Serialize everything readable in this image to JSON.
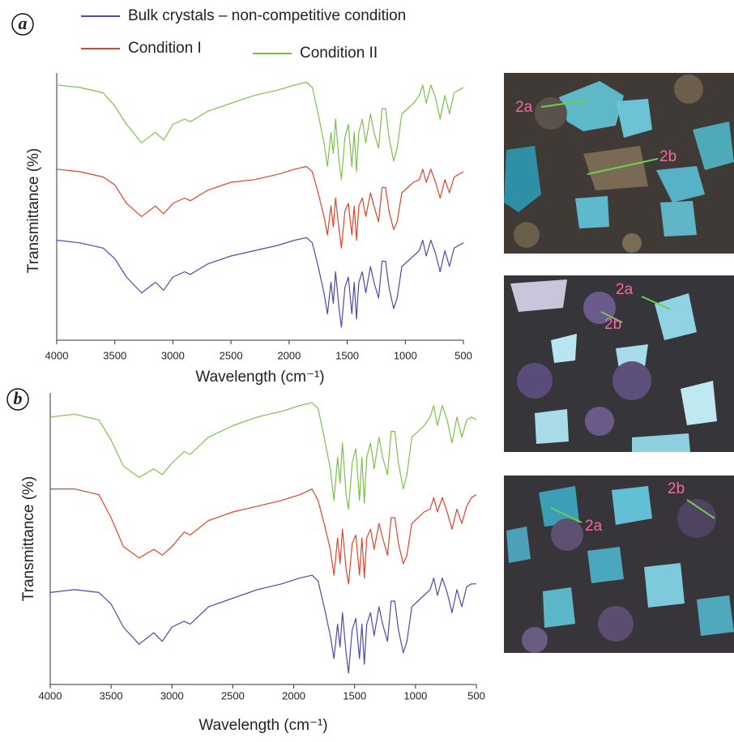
{
  "chart_data": [
    {
      "type": "line",
      "panel": "a",
      "xlabel": "Wavelength (cm⁻¹)",
      "ylabel": "Transmittance (%)",
      "legend": "top",
      "x": [
        4000,
        3800,
        3600,
        3500,
        3400,
        3270,
        3150,
        3080,
        3000,
        2900,
        2850,
        2700,
        2500,
        2300,
        2100,
        1950,
        1850,
        1800,
        1750,
        1700,
        1670,
        1640,
        1620,
        1600,
        1570,
        1550,
        1520,
        1490,
        1460,
        1440,
        1420,
        1400,
        1370,
        1340,
        1300,
        1270,
        1230,
        1200,
        1170,
        1140,
        1100,
        1070,
        1030,
        980,
        930,
        880,
        850,
        820,
        780,
        740,
        700,
        660,
        620,
        580,
        540,
        500
      ],
      "xlim": [
        4000,
        500
      ],
      "xticks": [
        4000,
        3500,
        3000,
        2500,
        2000,
        1500,
        1000,
        500
      ],
      "ylim": [
        0,
        100
      ],
      "series": [
        {
          "name": "Bulk crystals – non-competitive condition",
          "color": "#4b4ba8",
          "values": [
            38,
            37,
            35,
            31,
            24,
            18,
            22,
            19,
            24,
            26,
            25,
            29,
            32,
            34,
            36,
            38,
            39,
            37,
            28,
            18,
            10,
            22,
            14,
            26,
            12,
            5,
            20,
            24,
            10,
            22,
            8,
            22,
            26,
            18,
            28,
            22,
            16,
            30,
            30,
            20,
            12,
            16,
            28,
            30,
            32,
            34,
            38,
            32,
            38,
            33,
            26,
            34,
            28,
            35,
            36,
            37
          ]
        },
        {
          "name": "Condition I",
          "color": "#e0442c",
          "values": [
            65,
            64,
            62,
            59,
            52,
            47,
            51,
            48,
            52,
            54,
            53,
            57,
            60,
            61,
            63,
            65,
            66,
            64,
            56,
            47,
            40,
            51,
            43,
            54,
            42,
            35,
            49,
            52,
            40,
            51,
            38,
            51,
            54,
            47,
            56,
            51,
            45,
            58,
            58,
            49,
            42,
            45,
            56,
            58,
            60,
            61,
            65,
            60,
            65,
            60,
            54,
            61,
            56,
            62,
            63,
            64
          ]
        },
        {
          "name": "Condition II",
          "color": "#7dc04c",
          "values": [
            97,
            96,
            94,
            89,
            82,
            75,
            79,
            76,
            82,
            84,
            83,
            87,
            90,
            93,
            95,
            97,
            98,
            96,
            86,
            75,
            66,
            79,
            71,
            84,
            68,
            61,
            77,
            82,
            66,
            79,
            64,
            79,
            84,
            75,
            86,
            79,
            73,
            88,
            88,
            77,
            68,
            73,
            86,
            88,
            90,
            93,
            97,
            90,
            97,
            92,
            84,
            93,
            86,
            94,
            95,
            96
          ]
        }
      ]
    },
    {
      "type": "line",
      "panel": "b",
      "xlabel": "Wavelength (cm⁻¹)",
      "ylabel": "Transmittance (%)",
      "x": [
        4000,
        3800,
        3600,
        3500,
        3400,
        3270,
        3150,
        3080,
        3000,
        2900,
        2850,
        2700,
        2500,
        2300,
        2100,
        1950,
        1850,
        1800,
        1750,
        1700,
        1670,
        1640,
        1620,
        1600,
        1570,
        1550,
        1520,
        1490,
        1460,
        1440,
        1420,
        1400,
        1370,
        1340,
        1300,
        1270,
        1230,
        1200,
        1170,
        1140,
        1100,
        1070,
        1030,
        980,
        930,
        880,
        850,
        820,
        780,
        740,
        700,
        660,
        620,
        580,
        540,
        500
      ],
      "xlim": [
        4000,
        500
      ],
      "xticks": [
        4000,
        3500,
        3000,
        2500,
        2000,
        1500,
        1000,
        500
      ],
      "ylim": [
        0,
        100
      ],
      "series": [
        {
          "color": "#4b4ba8",
          "values": [
            32,
            33,
            32,
            28,
            20,
            14,
            18,
            15,
            20,
            22,
            21,
            27,
            30,
            33,
            35,
            37,
            38,
            36,
            27,
            17,
            9,
            21,
            13,
            25,
            11,
            4,
            19,
            23,
            9,
            21,
            7,
            21,
            25,
            17,
            27,
            21,
            15,
            29,
            29,
            19,
            11,
            15,
            27,
            29,
            31,
            33,
            37,
            31,
            37,
            32,
            25,
            33,
            27,
            34,
            35,
            35
          ]
        },
        {
          "color": "#e0442c",
          "values": [
            68,
            68,
            66,
            58,
            48,
            44,
            47,
            45,
            48,
            53,
            52,
            57,
            60,
            62,
            64,
            66,
            68,
            64,
            56,
            47,
            38,
            51,
            42,
            54,
            40,
            35,
            49,
            52,
            38,
            51,
            37,
            51,
            54,
            47,
            56,
            51,
            45,
            58,
            58,
            49,
            42,
            45,
            56,
            58,
            60,
            61,
            65,
            60,
            65,
            60,
            54,
            61,
            56,
            62,
            65,
            66
          ]
        },
        {
          "color": "#7dc04c",
          "values": [
            93,
            94,
            92,
            85,
            76,
            72,
            75,
            73,
            77,
            81,
            80,
            86,
            90,
            93,
            95,
            97,
            98,
            96,
            86,
            75,
            64,
            79,
            70,
            84,
            66,
            61,
            77,
            82,
            64,
            79,
            63,
            79,
            84,
            75,
            86,
            79,
            73,
            88,
            88,
            77,
            68,
            73,
            86,
            88,
            90,
            93,
            97,
            90,
            97,
            92,
            84,
            93,
            86,
            92,
            93,
            92
          ]
        }
      ]
    }
  ],
  "photos": [
    {
      "labels": [
        "2a",
        "2b"
      ]
    },
    {
      "labels": [
        "2a",
        "2b"
      ]
    },
    {
      "labels": [
        "2a",
        "2b"
      ]
    }
  ]
}
